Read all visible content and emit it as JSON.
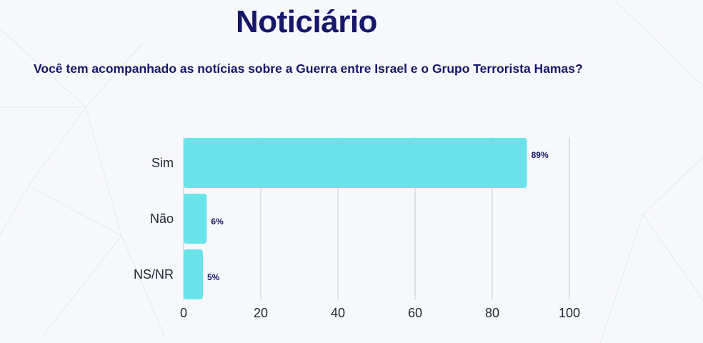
{
  "page": {
    "title": "Noticiário",
    "question": "Você tem acompanhado as notícias sobre a Guerra entre Israel e o Grupo Terrorista Hamas?"
  },
  "colors": {
    "title": "#15176a",
    "bar": "#6be4e9",
    "grid": "#c5c9d6",
    "background": "#f7f8fb"
  },
  "chart_data": {
    "type": "bar",
    "orientation": "horizontal",
    "categories": [
      "Sim",
      "Não",
      "NS/NR"
    ],
    "values": [
      89,
      6,
      5
    ],
    "value_labels": [
      "89%",
      "6%",
      "5%"
    ],
    "xlim": [
      0,
      100
    ],
    "xticks": [
      0,
      20,
      40,
      60,
      80,
      100
    ],
    "grid": true,
    "legend": "none"
  }
}
